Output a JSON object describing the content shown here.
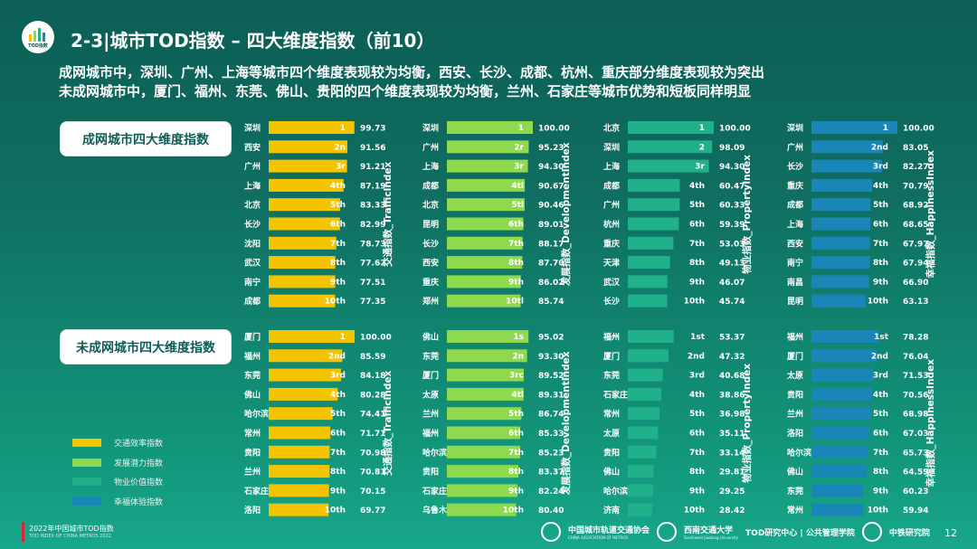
{
  "header": {
    "title": "2-3|城市TOD指数 – 四大维度指数（前10）",
    "subtitle_line1": "成网城市中，深圳、广州、上海等城市四个维度表现较为均衡，西安、长沙、成都、杭州、重庆部分维度表现较为突出",
    "subtitle_line2": "未成网城市中，厦门、福州、东莞、佛山、贵阳的四个维度表现较为均衡，兰州、石家庄等城市优势和短板同样明显",
    "logo_caption": "TOD指数"
  },
  "sections": [
    {
      "label": "成网城市四大维度指数"
    },
    {
      "label": "未成网城市四大维度指数"
    }
  ],
  "legend": [
    {
      "label": "交通效率指数",
      "color": "#f5c400"
    },
    {
      "label": "发展潜力指数",
      "color": "#8ed94e"
    },
    {
      "label": "物业价值指数",
      "color": "#21b18a"
    },
    {
      "label": "幸福体验指数",
      "color": "#1a86b8"
    }
  ],
  "footer": {
    "title": "2022年中国城市TOD指数",
    "subtitle": "TOD INDEX OF CHINA METROS 2022",
    "org1": "中国城市轨道交通协会",
    "org1_sub": "CHINA ASSOCIATION OF METROS",
    "org2": "西南交通大学",
    "org2_sub": "Southwest Jiaotong University",
    "org3": "TOD研究中心 | 公共管理学院",
    "org4": "中铁研究院",
    "page": "12"
  },
  "chart_data": [
    {
      "type": "bar",
      "orientation": "horizontal",
      "group": "成网城市",
      "title": "交通指数_TrafficIndex",
      "color": "#f5c400",
      "categories": [
        "深圳",
        "西安",
        "广州",
        "上海",
        "北京",
        "长沙",
        "沈阳",
        "武汉",
        "南宁",
        "成都"
      ],
      "ranks": [
        "1",
        "2n",
        "3r",
        "4th",
        "5th",
        "6th",
        "7th",
        "8th",
        "9th",
        "10th"
      ],
      "values": [
        99.73,
        91.56,
        91.21,
        87.19,
        83.33,
        82.99,
        78.73,
        77.62,
        77.51,
        77.35
      ]
    },
    {
      "type": "bar",
      "orientation": "horizontal",
      "group": "成网城市",
      "title": "发展指数_DevelopmentIndex",
      "color": "#8ed94e",
      "categories": [
        "深圳",
        "广州",
        "上海",
        "成都",
        "北京",
        "昆明",
        "长沙",
        "西安",
        "重庆",
        "郑州"
      ],
      "ranks": [
        "1",
        "2r",
        "3r",
        "4tl",
        "5tl",
        "6th",
        "7th",
        "8th",
        "9th",
        "10tl"
      ],
      "values": [
        100.0,
        95.23,
        94.3,
        90.67,
        90.46,
        89.01,
        88.17,
        87.7,
        86.02,
        85.74
      ]
    },
    {
      "type": "bar",
      "orientation": "horizontal",
      "group": "成网城市",
      "title": "物业指数_PropertyIndex",
      "color": "#21b18a",
      "categories": [
        "北京",
        "深圳",
        "上海",
        "成都",
        "广州",
        "杭州",
        "重庆",
        "天津",
        "武汉",
        "长沙"
      ],
      "ranks": [
        "1",
        "2",
        "3r",
        "4th",
        "5th",
        "6th",
        "7th",
        "8th",
        "9th",
        "10th"
      ],
      "values": [
        100.0,
        98.09,
        94.3,
        60.47,
        60.33,
        59.39,
        53.03,
        49.13,
        46.07,
        45.74
      ]
    },
    {
      "type": "bar",
      "orientation": "horizontal",
      "group": "成网城市",
      "title": "幸福指数_HappinessIndex",
      "color": "#1a86b8",
      "categories": [
        "深圳",
        "广州",
        "长沙",
        "重庆",
        "成都",
        "上海",
        "西安",
        "南宁",
        "南昌",
        "昆明"
      ],
      "ranks": [
        "1",
        "2nd",
        "3rd",
        "4th",
        "5th",
        "6th",
        "7th",
        "8th",
        "9th",
        "10th"
      ],
      "values": [
        100.0,
        83.05,
        82.27,
        70.79,
        68.92,
        68.65,
        67.97,
        67.94,
        66.9,
        63.13
      ]
    },
    {
      "type": "bar",
      "orientation": "horizontal",
      "group": "未成网城市",
      "title": "交通指数_TrafficIndex",
      "color": "#f5c400",
      "categories": [
        "厦门",
        "福州",
        "东莞",
        "佛山",
        "哈尔滨",
        "常州",
        "贵阳",
        "兰州",
        "石家庄",
        "洛阳"
      ],
      "ranks": [
        "1",
        "2nd",
        "3rd",
        "4th",
        "5th",
        "6th",
        "7th",
        "8th",
        "9th",
        "10th"
      ],
      "values": [
        100.0,
        85.59,
        84.18,
        80.28,
        74.41,
        71.71,
        70.98,
        70.81,
        70.15,
        69.77
      ]
    },
    {
      "type": "bar",
      "orientation": "horizontal",
      "group": "未成网城市",
      "title": "发展指数_DevelopmentIndex",
      "color": "#8ed94e",
      "categories": [
        "佛山",
        "东莞",
        "厦门",
        "太原",
        "兰州",
        "福州",
        "哈尔滨",
        "贵阳",
        "石家庄",
        "乌鲁木齐"
      ],
      "ranks": [
        "1s",
        "2n",
        "3rc",
        "4tl",
        "5th",
        "6th",
        "7th",
        "8th",
        "9th",
        "10th"
      ],
      "values": [
        95.02,
        93.3,
        89.52,
        89.31,
        86.74,
        85.33,
        85.23,
        83.37,
        82.24,
        80.4
      ]
    },
    {
      "type": "bar",
      "orientation": "horizontal",
      "group": "未成网城市",
      "title": "物业指数_PropertyIndex",
      "color": "#21b18a",
      "categories": [
        "福州",
        "厦门",
        "东莞",
        "石家庄",
        "常州",
        "太原",
        "贵阳",
        "佛山",
        "哈尔滨",
        "济南"
      ],
      "ranks": [
        "1st",
        "2nd",
        "3rd",
        "4th",
        "5th",
        "6th",
        "7th",
        "8th",
        "9th",
        "10th"
      ],
      "values": [
        53.37,
        47.32,
        40.68,
        38.86,
        36.98,
        35.11,
        33.14,
        29.81,
        29.25,
        28.42
      ]
    },
    {
      "type": "bar",
      "orientation": "horizontal",
      "group": "未成网城市",
      "title": "幸福指数_HappinessIndex",
      "color": "#1a86b8",
      "categories": [
        "福州",
        "厦门",
        "太原",
        "贵阳",
        "兰州",
        "洛阳",
        "哈尔滨",
        "佛山",
        "东莞",
        "常州"
      ],
      "ranks": [
        "1st",
        "2nd",
        "3rd",
        "4th",
        "5th",
        "6th",
        "7th",
        "8th",
        "9th",
        "10th"
      ],
      "values": [
        78.28,
        76.04,
        71.53,
        70.56,
        68.98,
        67.03,
        65.73,
        64.59,
        60.23,
        59.94
      ]
    }
  ]
}
